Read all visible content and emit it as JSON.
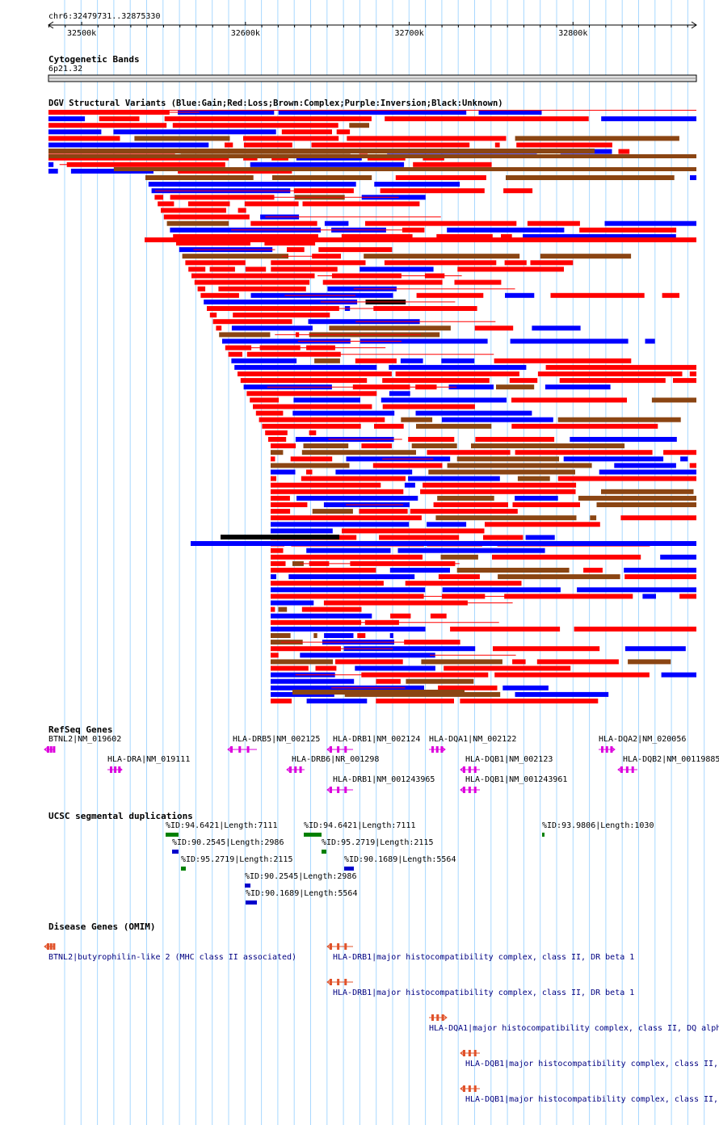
{
  "position": "chr6:32479731..32875330",
  "ruler": {
    "start": 32479731,
    "end": 32875330,
    "ticks": [
      {
        "pos": 32500000,
        "label": "32500k"
      },
      {
        "pos": 32600000,
        "label": "32600k"
      },
      {
        "pos": 32700000,
        "label": "32700k"
      },
      {
        "pos": 32800000,
        "label": "32800k"
      }
    ]
  },
  "tracks": {
    "cytoband": {
      "title": "Cytogenetic Bands",
      "band": "6p21.32"
    },
    "dgv": {
      "title": "DGV Structural Variants (Blue:Gain;Red:Loss;Brown:Complex;Purple:Inversion;Black:Unknown)"
    },
    "refseq": {
      "title": "RefSeq Genes"
    },
    "segdup": {
      "title": "UCSC segmental duplications"
    },
    "omim": {
      "title": "Disease Genes (OMIM)"
    }
  },
  "colors": {
    "gain": "#0000ff",
    "loss": "#ff0000",
    "complex": "#8b4513",
    "unknown": "#000000",
    "refseq": "#dd00dd",
    "segdup_high": "#008000",
    "segdup_low": "#0000cc",
    "omim": "#e0522a",
    "omim_label": "#000080",
    "gridline": "#a8d8ff"
  },
  "refseq_genes": [
    {
      "label": "BTNL2|NM_019602",
      "strand": "-"
    },
    {
      "label": "HLA-DRA|NM_019111",
      "strand": "+"
    },
    {
      "label": "HLA-DRB5|NM_002125",
      "strand": "-"
    },
    {
      "label": "HLA-DRB6|NR_001298",
      "strand": "-"
    },
    {
      "label": "HLA-DRB1|NM_002124",
      "strand": "-"
    },
    {
      "label": "HLA-DRB1|NM_001243965",
      "strand": "-"
    },
    {
      "label": "HLA-DQA1|NM_002122",
      "strand": "+"
    },
    {
      "label": "HLA-DQB1|NM_002123",
      "strand": "-"
    },
    {
      "label": "HLA-DQB1|NM_001243961",
      "strand": "-"
    },
    {
      "label": "HLA-DQA2|NM_020056",
      "strand": "+"
    },
    {
      "label": "HLA-DQB2|NM_00119885",
      "strand": "-"
    }
  ],
  "segdups": [
    {
      "label": "%ID:94.6421|Length:7111"
    },
    {
      "label": "%ID:90.2545|Length:2986"
    },
    {
      "label": "%ID:95.2719|Length:2115"
    },
    {
      "label": "%ID:94.6421|Length:7111"
    },
    {
      "label": "%ID:95.2719|Length:2115"
    },
    {
      "label": "%ID:90.1689|Length:5564"
    },
    {
      "label": "%ID:90.2545|Length:2986"
    },
    {
      "label": "%ID:90.1689|Length:5564"
    },
    {
      "label": "%ID:93.9806|Length:1030"
    }
  ],
  "omim_genes": [
    {
      "label": "BTNL2|butyrophilin-like 2 (MHC class II associated)",
      "strand": "-"
    },
    {
      "label": "HLA-DRB1|major histocompatibility complex, class II, DR beta 1",
      "strand": "-"
    },
    {
      "label": "HLA-DRB1|major histocompatibility complex, class II, DR beta 1",
      "strand": "-"
    },
    {
      "label": "HLA-DQA1|major histocompatibility complex, class II, DQ alph",
      "strand": "+"
    },
    {
      "label": "HLA-DQB1|major histocompatibility complex, class II,",
      "strand": "-"
    },
    {
      "label": "HLA-DQB1|major histocompatibility complex, class II,",
      "strand": "-"
    }
  ]
}
